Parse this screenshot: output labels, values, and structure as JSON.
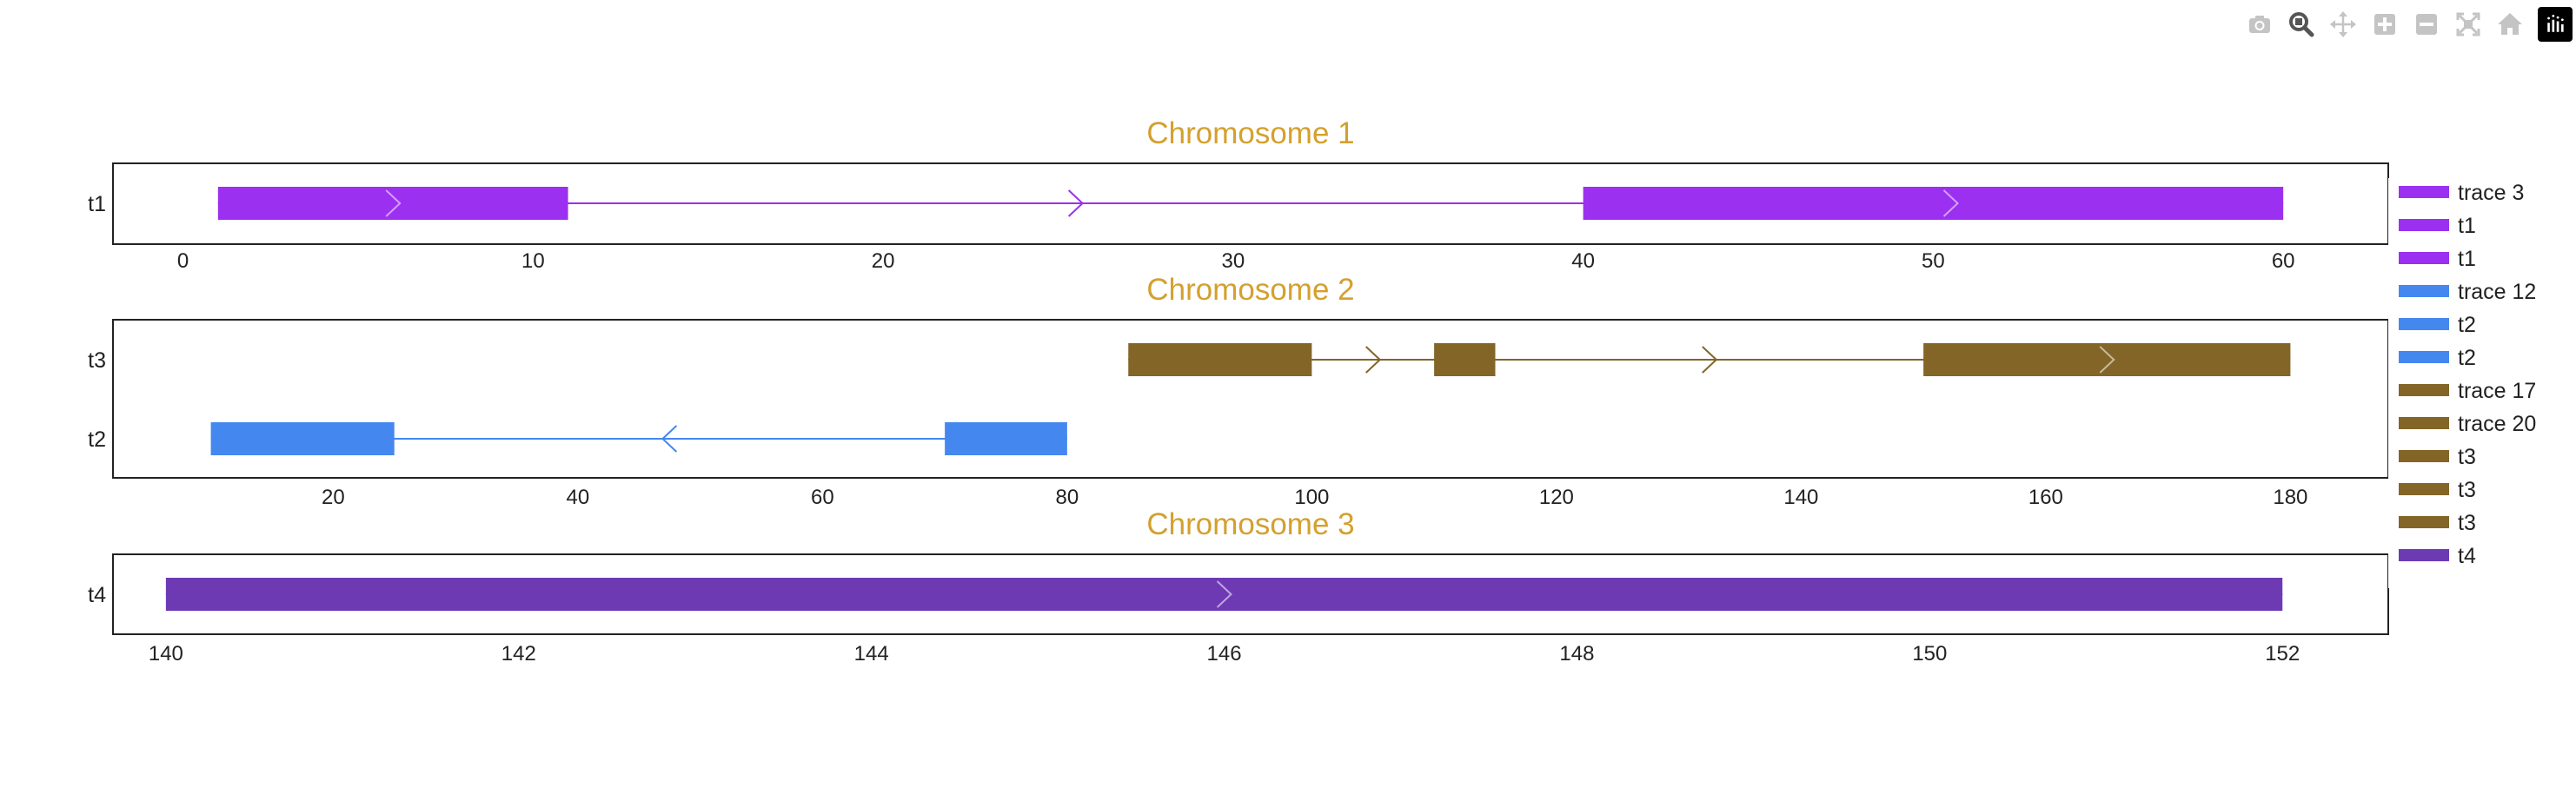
{
  "modebar": {
    "buttons": [
      {
        "name": "camera-icon",
        "active": false
      },
      {
        "name": "zoom-icon",
        "active": true
      },
      {
        "name": "pan-icon",
        "active": false
      },
      {
        "name": "zoom-in-icon",
        "active": false
      },
      {
        "name": "zoom-out-icon",
        "active": false
      },
      {
        "name": "autoscale-icon",
        "active": false
      },
      {
        "name": "home-icon",
        "active": false
      }
    ],
    "logo": "plotly-logo-icon"
  },
  "colors": {
    "title": "#d4a02e",
    "t1": "#9b30f0",
    "t2": "#4488ef",
    "t3": "#836527",
    "t4": "#6d3ab3"
  },
  "chart_data": [
    {
      "type": "gene-track",
      "title": "Chromosome 1",
      "xlim": [
        -2,
        63
      ],
      "xticks": [
        0,
        10,
        20,
        30,
        40,
        50,
        60
      ],
      "tracks": [
        {
          "label": "t1",
          "color_key": "t1",
          "strand": "+",
          "start": 1,
          "end": 60,
          "exons": [
            [
              1,
              11
            ],
            [
              40,
              60
            ]
          ],
          "arrows": [
            6,
            25.5,
            50.5
          ]
        }
      ]
    },
    {
      "type": "gene-track",
      "title": "Chromosome 2",
      "xlim": [
        2,
        188
      ],
      "xticks": [
        20,
        40,
        60,
        80,
        100,
        120,
        140,
        160,
        180
      ],
      "tracks": [
        {
          "label": "t3",
          "color_key": "t3",
          "strand": "+",
          "start": 85,
          "end": 180,
          "exons": [
            [
              85,
              100
            ],
            [
              110,
              115
            ],
            [
              150,
              180
            ]
          ],
          "arrows": [
            105,
            132.5,
            165
          ]
        },
        {
          "label": "t2",
          "color_key": "t2",
          "strand": "-",
          "start": 10,
          "end": 80,
          "exons": [
            [
              10,
              25
            ],
            [
              70,
              80
            ]
          ],
          "arrows": [
            47.5
          ]
        }
      ]
    },
    {
      "type": "gene-track",
      "title": "Chromosome 3",
      "xlim": [
        139.7,
        152.6
      ],
      "xticks": [
        140,
        142,
        144,
        146,
        148,
        150,
        152
      ],
      "tracks": [
        {
          "label": "t4",
          "color_key": "t4",
          "strand": "+",
          "start": 140,
          "end": 152,
          "exons": [
            [
              140,
              152
            ]
          ],
          "arrows": [
            146
          ]
        }
      ]
    }
  ],
  "legend": {
    "placement": "right",
    "entries": [
      {
        "name": "trace 3",
        "color_key": "t1"
      },
      {
        "name": "t1",
        "color_key": "t1"
      },
      {
        "name": "t1",
        "color_key": "t1"
      },
      {
        "name": "trace 12",
        "color_key": "t2"
      },
      {
        "name": "t2",
        "color_key": "t2"
      },
      {
        "name": "t2",
        "color_key": "t2"
      },
      {
        "name": "trace 17",
        "color_key": "t3"
      },
      {
        "name": "trace 20",
        "color_key": "t3"
      },
      {
        "name": "t3",
        "color_key": "t3"
      },
      {
        "name": "t3",
        "color_key": "t3"
      },
      {
        "name": "t3",
        "color_key": "t3"
      },
      {
        "name": "t4",
        "color_key": "t4"
      }
    ]
  }
}
